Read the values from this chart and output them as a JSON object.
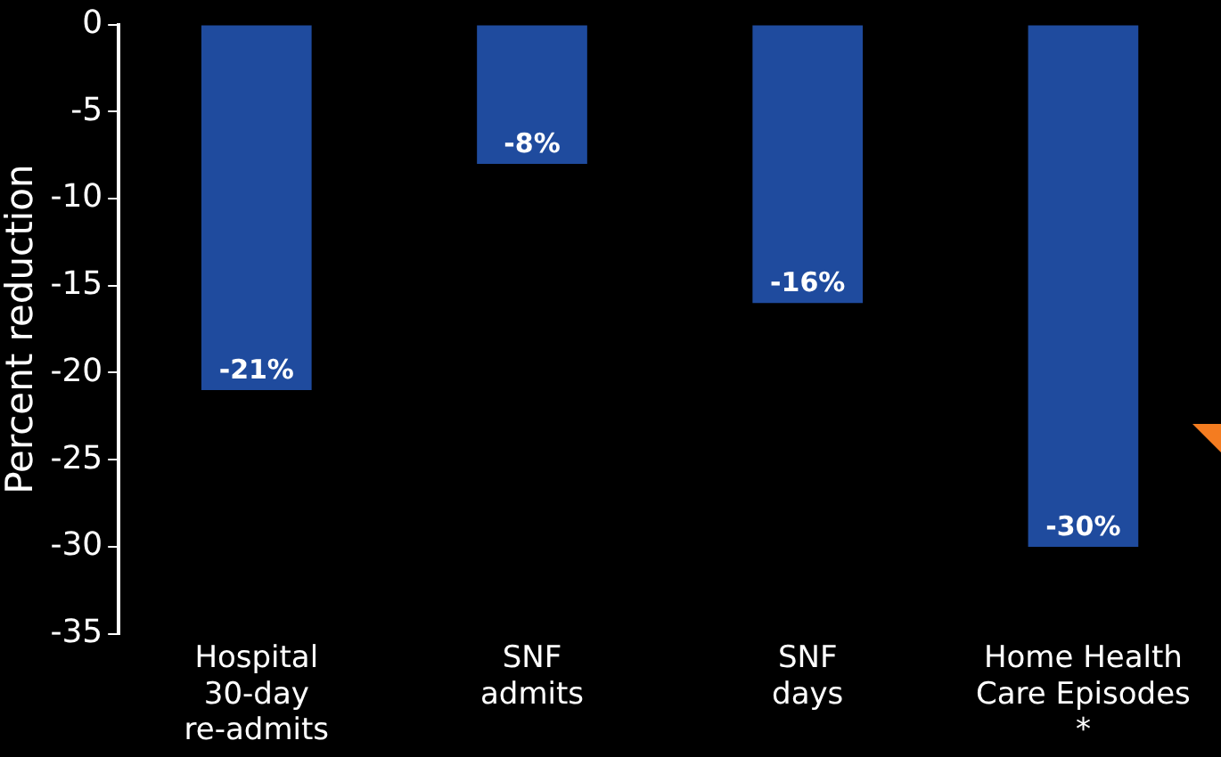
{
  "chart_data": {
    "type": "bar",
    "ylabel": "Percent reduction",
    "categories": [
      "Hospital\n30-day\nre-admits",
      "SNF\nadmits",
      "SNF\ndays",
      "Home Health\nCare Episodes\n*"
    ],
    "values": [
      -21,
      -8,
      -16,
      -30
    ],
    "value_labels": [
      "-21%",
      "-8%",
      "-16%",
      "-30%"
    ],
    "color": "#1f4b9e",
    "ylim": [
      -35,
      0
    ],
    "yticks": [
      0,
      -5,
      -10,
      -15,
      -20,
      -25,
      -30,
      -35
    ],
    "grid": false,
    "legend": false
  }
}
